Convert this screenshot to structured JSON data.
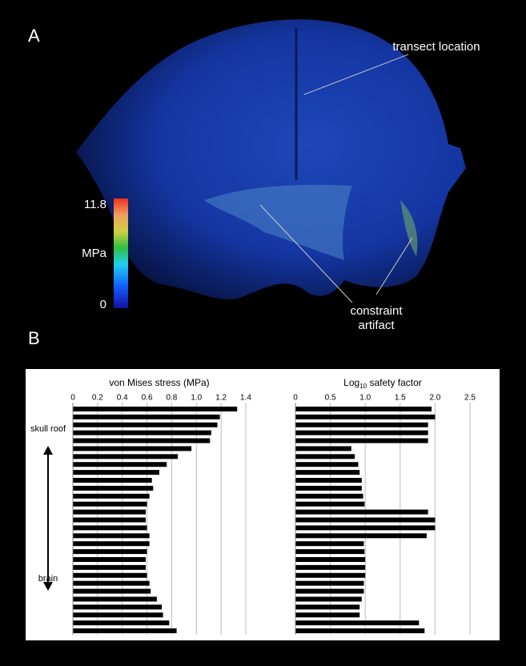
{
  "panel_a": {
    "label": "A",
    "transect_note": "transect location",
    "constraint_note": "constraint artifact",
    "colorbar": {
      "max": "11.8",
      "unit": "MPa",
      "min": "0"
    }
  },
  "panel_b": {
    "label": "B",
    "top_note": "skull roof",
    "bottom_note": "brain"
  },
  "chart_data": [
    {
      "type": "bar",
      "orientation": "horizontal",
      "title": [
        "von Mises stress (MPa)"
      ],
      "values": [
        1.33,
        1.19,
        1.17,
        1.12,
        1.11,
        0.96,
        0.85,
        0.76,
        0.7,
        0.64,
        0.65,
        0.62,
        0.6,
        0.59,
        0.59,
        0.6,
        0.62,
        0.62,
        0.6,
        0.59,
        0.59,
        0.6,
        0.62,
        0.63,
        0.68,
        0.72,
        0.73,
        0.78,
        0.84
      ],
      "color": "#000000",
      "grid": true,
      "xlim": [
        0,
        1.4
      ],
      "xticks": [
        0,
        0.2,
        0.4,
        0.6,
        0.8,
        {
          "value": 1,
          "label": "1.0"
        },
        1.2,
        1.4
      ]
    },
    {
      "type": "bar",
      "orientation": "horizontal",
      "title": [
        "Log",
        "10",
        " safety factor"
      ],
      "values": [
        1.95,
        2.0,
        1.9,
        1.9,
        1.9,
        0.8,
        0.85,
        0.9,
        0.92,
        0.95,
        0.95,
        0.97,
        0.99,
        1.9,
        2.0,
        2.0,
        1.88,
        0.98,
        0.99,
        1.0,
        1.0,
        1.0,
        0.98,
        0.98,
        0.95,
        0.92,
        0.92,
        1.77,
        1.85
      ],
      "color": "#000000",
      "grid": true,
      "xlim": [
        0,
        2.5
      ],
      "xticks": [
        0,
        0.5,
        {
          "value": 1,
          "label": "1.0"
        },
        1.5,
        {
          "value": 2,
          "label": "2.0"
        },
        2.5
      ]
    }
  ]
}
